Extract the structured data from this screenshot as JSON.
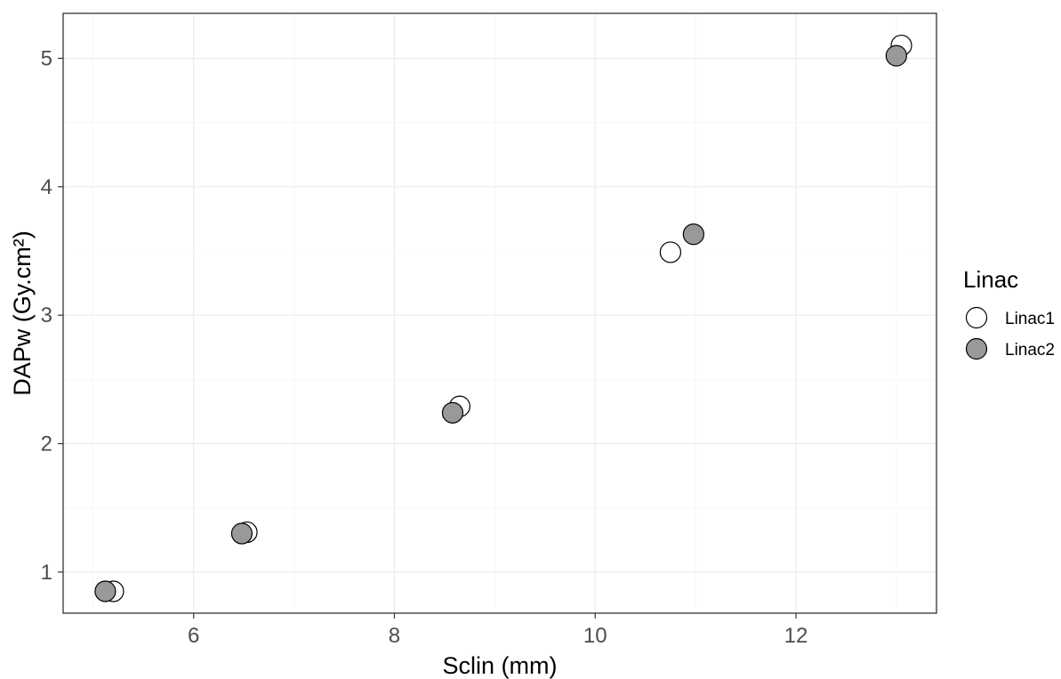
{
  "chart_data": {
    "type": "scatter",
    "title": "",
    "xlabel": "Sclin (mm)",
    "ylabel": "DAPw (Gy.cm²)",
    "xlim": [
      4.7,
      13.4
    ],
    "ylim": [
      0.68,
      5.35
    ],
    "x_ticks": [
      6,
      8,
      10,
      12
    ],
    "y_ticks": [
      1,
      2,
      3,
      4,
      5
    ],
    "grid": true,
    "legend": {
      "title": "Linac",
      "position": "right"
    },
    "series": [
      {
        "name": "Linac1",
        "fill": "#ffffff",
        "stroke": "#000000",
        "points": [
          {
            "x": 5.2,
            "y": 0.85
          },
          {
            "x": 6.53,
            "y": 1.31
          },
          {
            "x": 8.65,
            "y": 2.29
          },
          {
            "x": 10.75,
            "y": 3.49
          },
          {
            "x": 13.05,
            "y": 5.1
          }
        ]
      },
      {
        "name": "Linac2",
        "fill": "#999999",
        "stroke": "#000000",
        "points": [
          {
            "x": 5.12,
            "y": 0.85
          },
          {
            "x": 6.48,
            "y": 1.3
          },
          {
            "x": 8.58,
            "y": 2.24
          },
          {
            "x": 10.98,
            "y": 3.63
          },
          {
            "x": 13.0,
            "y": 5.02
          }
        ]
      }
    ]
  }
}
